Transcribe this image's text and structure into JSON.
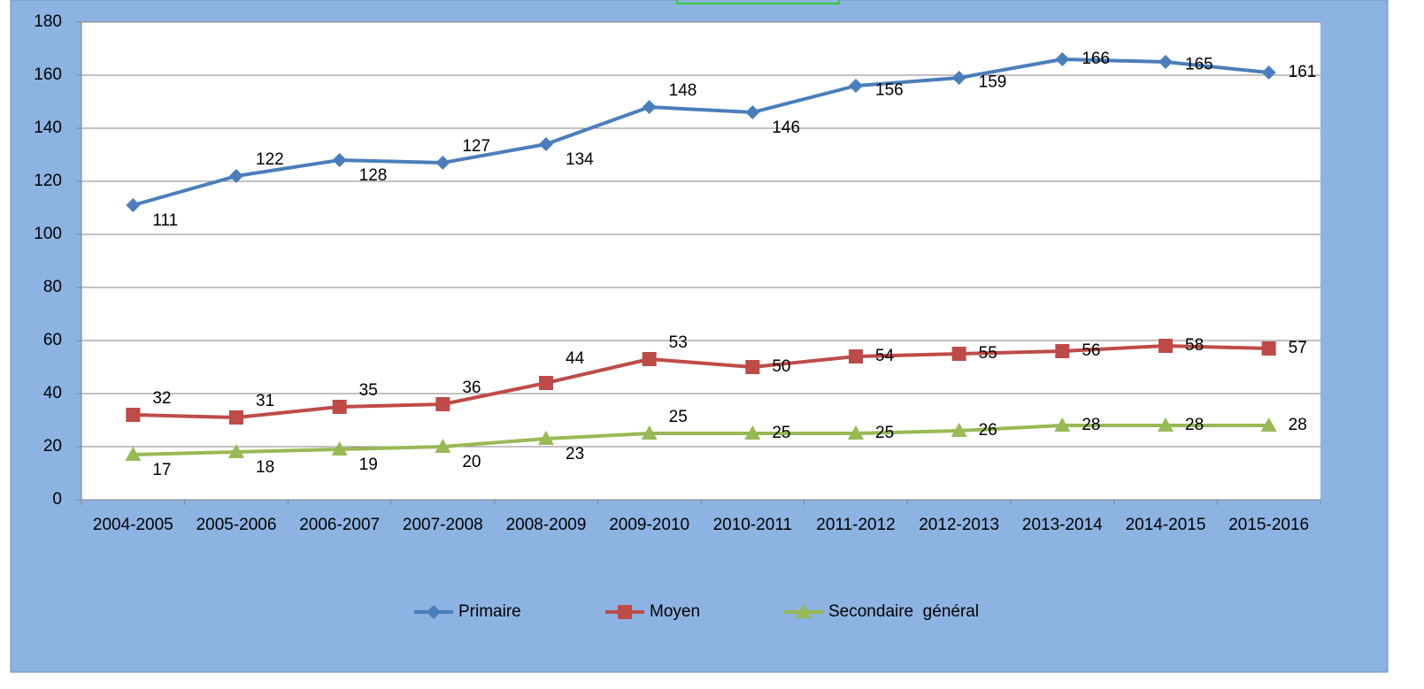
{
  "chart_data": {
    "type": "line",
    "categories": [
      "2004-2005",
      "2005-2006",
      "2006-2007",
      "2007-2008",
      "2008-2009",
      "2009-2010",
      "2010-2011",
      "2011-2012",
      "2012-2013",
      "2013-2014",
      "2014-2015",
      "2015-2016"
    ],
    "series": [
      {
        "name": "Primaire",
        "color": "#4a7ebb",
        "marker": "diamond",
        "values": [
          111,
          122,
          128,
          127,
          134,
          148,
          146,
          156,
          159,
          166,
          165,
          161
        ]
      },
      {
        "name": "Moyen",
        "color": "#be4b48",
        "marker": "square",
        "values": [
          32,
          31,
          35,
          36,
          44,
          53,
          50,
          54,
          55,
          56,
          58,
          57
        ]
      },
      {
        "name": "Secondaire  général",
        "color": "#98b954",
        "marker": "triangle",
        "values": [
          17,
          18,
          19,
          20,
          23,
          25,
          25,
          25,
          26,
          28,
          28,
          28
        ]
      }
    ],
    "ylim": [
      0,
      180
    ],
    "yticks": [
      0,
      20,
      40,
      60,
      80,
      100,
      120,
      140,
      160,
      180
    ],
    "grid": true,
    "legend": "bottom"
  }
}
